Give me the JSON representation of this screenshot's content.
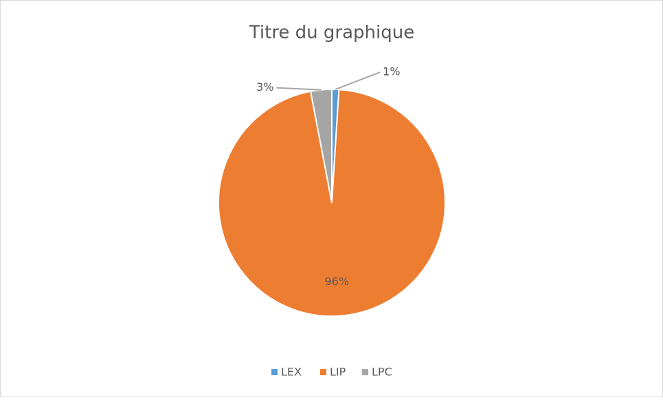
{
  "chart_data": {
    "type": "pie",
    "title": "Titre du graphique",
    "categories": [
      "LEX",
      "LIP",
      "LPC"
    ],
    "values": [
      1,
      96,
      3
    ],
    "value_labels": [
      "1%",
      "96%",
      "3%"
    ],
    "colors": [
      "#5b9bd5",
      "#ed7d31",
      "#a5a5a5"
    ],
    "legend": "bottom"
  }
}
